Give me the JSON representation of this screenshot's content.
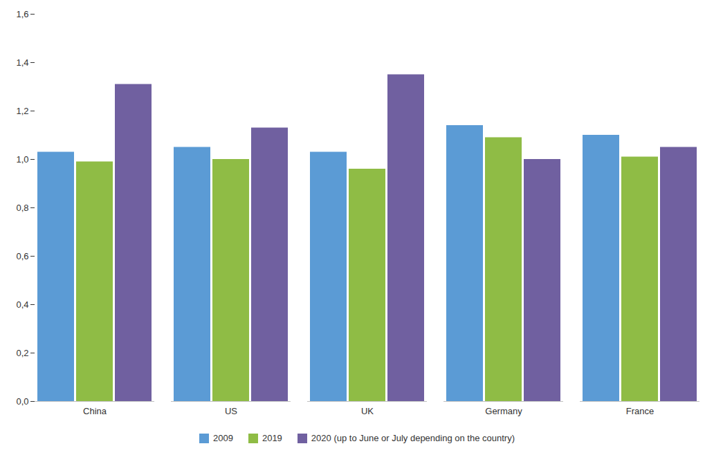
{
  "chart_data": {
    "type": "bar",
    "categories": [
      "China",
      "US",
      "UK",
      "Germany",
      "France"
    ],
    "series": [
      {
        "name": "2009",
        "color": "#5b9bd5",
        "values": [
          1.03,
          1.05,
          1.03,
          1.14,
          1.1
        ]
      },
      {
        "name": "2019",
        "color": "#8fbc45",
        "values": [
          0.99,
          1.0,
          0.96,
          1.09,
          1.01
        ]
      },
      {
        "name": "2020 (up to June or July depending on the country)",
        "color": "#7060a0",
        "values": [
          1.31,
          1.13,
          1.35,
          1.0,
          1.05
        ]
      }
    ],
    "ylim": [
      0,
      1.6
    ],
    "yticks": [
      {
        "value": 0.0,
        "label": "0,0"
      },
      {
        "value": 0.2,
        "label": "0,2"
      },
      {
        "value": 0.4,
        "label": "0,4"
      },
      {
        "value": 0.6,
        "label": "0,6"
      },
      {
        "value": 0.8,
        "label": "0,8"
      },
      {
        "value": 1.0,
        "label": "1,0"
      },
      {
        "value": 1.2,
        "label": "1,2"
      },
      {
        "value": 1.4,
        "label": "1,4"
      },
      {
        "value": 1.6,
        "label": "1,6"
      }
    ],
    "grid": false,
    "legend": "bottom"
  }
}
